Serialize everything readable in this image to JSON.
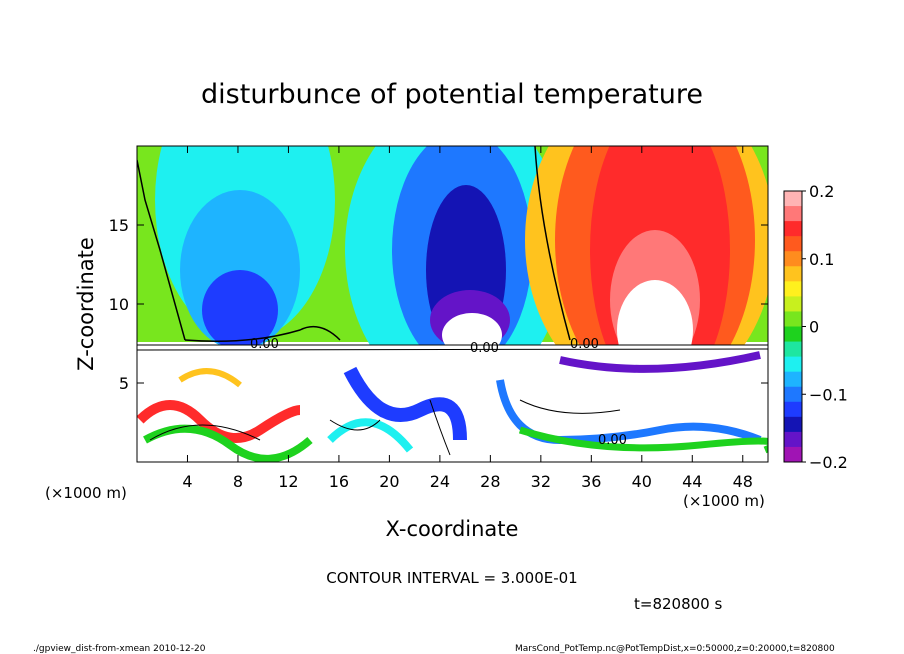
{
  "chart_data": {
    "type": "heatmap",
    "title": "disturbunce of potential temperature",
    "xlabel": "X-coordinate",
    "ylabel": "Z-coordinate",
    "x_unit": "(×1000 m)",
    "y_unit": "(×1000 m)",
    "xlim": [
      0,
      50
    ],
    "ylim": [
      0,
      20
    ],
    "x_ticks": [
      4,
      8,
      12,
      16,
      20,
      24,
      28,
      32,
      36,
      40,
      44,
      48
    ],
    "y_ticks": [
      5,
      10,
      15
    ],
    "colorbar": {
      "range": [
        -0.2,
        0.2
      ],
      "tick_values": [
        0.2,
        0.1,
        0,
        -0.1,
        -0.2
      ],
      "tick_labels": [
        "0.2",
        "0.1",
        "0",
        "−0.1",
        "−0.2"
      ],
      "colors_top_to_bottom": [
        "#ffb4b4",
        "#ff7878",
        "#ff2b2b",
        "#ff5a1e",
        "#ff8c1e",
        "#ffc31e",
        "#fff01e",
        "#c8f01e",
        "#78e61e",
        "#1ed21e",
        "#1ee6a0",
        "#1ef0f0",
        "#1eb4ff",
        "#1e78ff",
        "#1e3cff",
        "#1414b4",
        "#6414c8",
        "#a014b4"
      ]
    },
    "contour_interval": "CONTOUR INTERVAL = 3.000E-01",
    "contour_labels": [
      "0.00",
      "0.00",
      "0.00",
      "0.00"
    ],
    "time_label": "t=820800 s"
  },
  "footer": {
    "left": "./gpview_dist-from-xmean   2010-12-20",
    "right": "MarsCond_PotTemp.nc@PotTempDist,x=0:50000,z=0:20000,t=820800"
  }
}
